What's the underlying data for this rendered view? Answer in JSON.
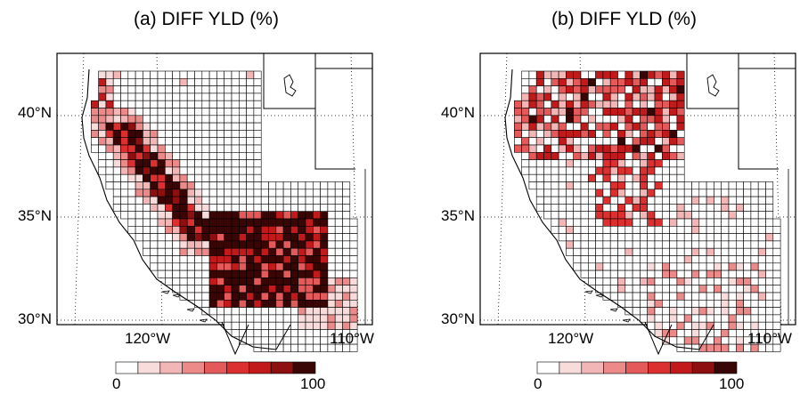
{
  "panels": [
    {
      "id": "a",
      "title": "(a) DIFF YLD (%)",
      "lat_labels": [
        "40°N",
        "35°N",
        "30°N"
      ],
      "lon_labels": [
        "120°W",
        "110°W"
      ],
      "colorbar": {
        "min_label": "0",
        "max_label": "100"
      }
    },
    {
      "id": "b",
      "title": "(b) DIFF YLD (%)",
      "lat_labels": [
        "40°N",
        "35°N",
        "30°N"
      ],
      "lon_labels": [
        "120°W",
        "110°W"
      ],
      "colorbar": {
        "min_label": "0",
        "max_label": "100"
      }
    }
  ],
  "colors": {
    "scale": [
      "#ffffff",
      "#f8dcdc",
      "#f2b6b6",
      "#ec8a8a",
      "#e45a5a",
      "#dc2f2f",
      "#c21a1a",
      "#8e0f0f",
      "#3a0505"
    ],
    "grid_line": "#000000",
    "coast": "#000000",
    "background": "#ffffff"
  }
}
